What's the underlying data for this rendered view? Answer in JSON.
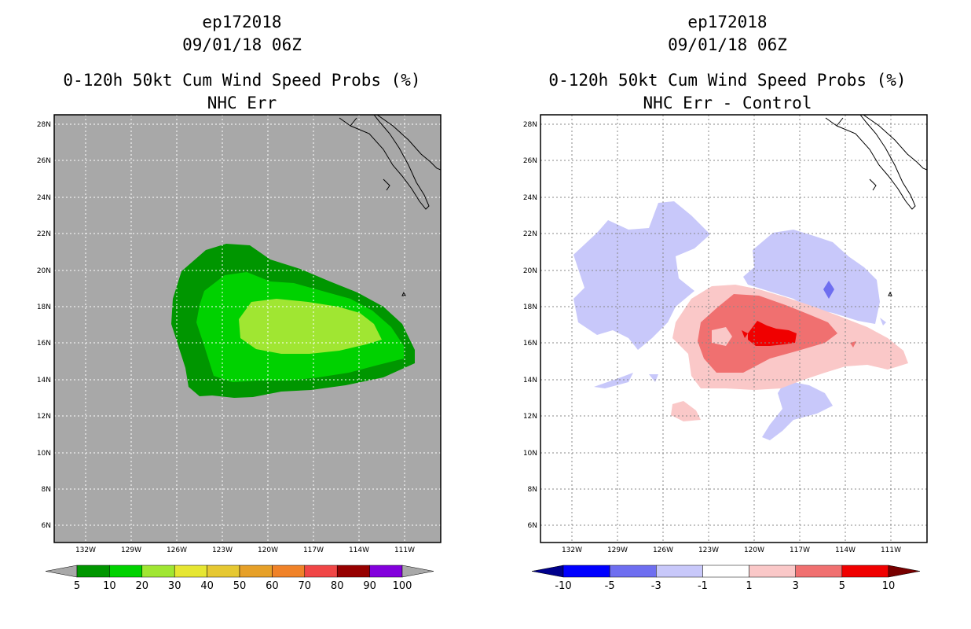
{
  "left_panel": {
    "storm_id": "ep172018",
    "datetime": "09/01/18 06Z",
    "product": "0-120h 50kt Cum Wind Speed Probs (%)",
    "subtitle": "NHC Err",
    "background_color": "#a8a8a8"
  },
  "right_panel": {
    "storm_id": "ep172018",
    "datetime": "09/01/18 06Z",
    "product": "0-120h 50kt Cum Wind Speed Probs (%)",
    "subtitle": "NHC Err - Control",
    "background_color": "#ffffff"
  },
  "axes": {
    "lon_labels": [
      "132W",
      "129W",
      "126W",
      "123W",
      "120W",
      "117W",
      "114W",
      "111W"
    ],
    "lat_labels": [
      "28N",
      "26N",
      "24N",
      "22N",
      "20N",
      "18N",
      "16N",
      "14N",
      "12N",
      "10N",
      "8N",
      "6N"
    ]
  },
  "left_colorbar": {
    "labels": [
      "5",
      "10",
      "20",
      "30",
      "40",
      "50",
      "60",
      "70",
      "80",
      "90",
      "100"
    ],
    "colors": [
      "#009600",
      "#00d200",
      "#a0e632",
      "#e6e632",
      "#e6c832",
      "#e6a028",
      "#f08228",
      "#f04646",
      "#960000",
      "#8200dc"
    ],
    "under_color": "#a8a8a8",
    "over_color": "#a8a8a8"
  },
  "right_colorbar": {
    "labels": [
      "-10",
      "-5",
      "-3",
      "-1",
      "1",
      "3",
      "5",
      "10"
    ],
    "colors": [
      "#0000ff",
      "#6e6ef0",
      "#c8c8fa",
      "#ffffff",
      "#fac8c8",
      "#f07070",
      "#f00000"
    ],
    "under_color": "#00008c",
    "over_color": "#780000"
  }
}
